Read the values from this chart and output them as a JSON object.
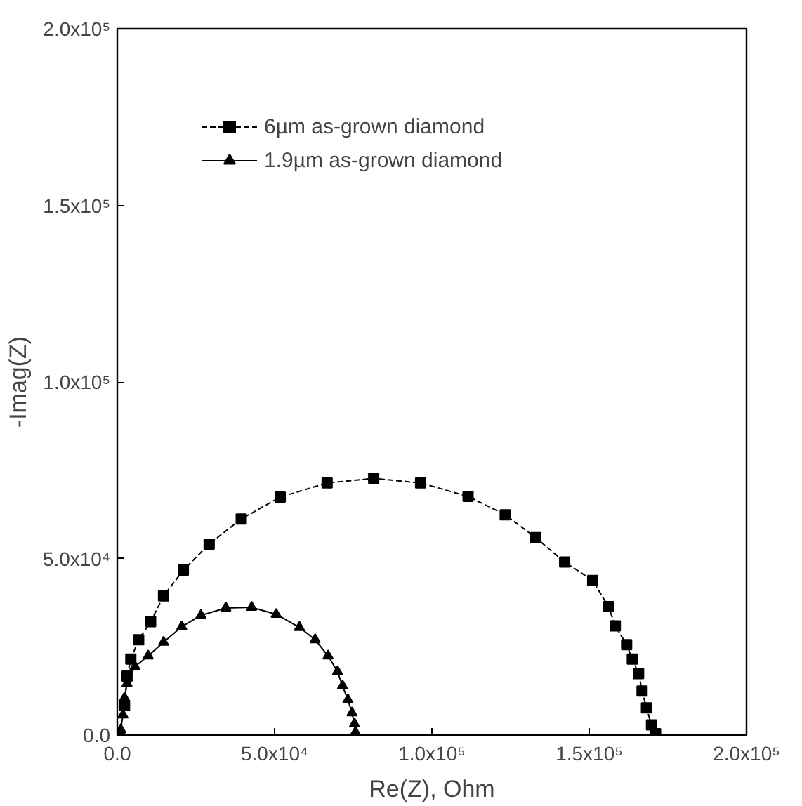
{
  "chart_data": {
    "type": "line",
    "xlabel": "Re(Z), Ohm",
    "ylabel": "-Imag(Z)",
    "xlim": [
      0,
      200000
    ],
    "ylim": [
      0,
      200000
    ],
    "xticks": [
      {
        "value": 0,
        "label": "0.0"
      },
      {
        "value": 50000,
        "label": "5.0x10⁴"
      },
      {
        "value": 100000,
        "label": "1.0x10⁵"
      },
      {
        "value": 150000,
        "label": "1.5x10⁵"
      },
      {
        "value": 200000,
        "label": "2.0x10⁵"
      }
    ],
    "yticks": [
      {
        "value": 0,
        "label": "0.0"
      },
      {
        "value": 50000,
        "label": "5.0x10⁴"
      },
      {
        "value": 100000,
        "label": "1.0x10⁵"
      },
      {
        "value": 150000,
        "label": "1.5x10⁵"
      },
      {
        "value": 200000,
        "label": "2.0x10⁵"
      }
    ],
    "grid": false,
    "legend": "top left",
    "series": [
      {
        "name": "6µm as-grown diamond",
        "color": "#000000",
        "marker": "square",
        "line_style": "dashed",
        "x": [
          600,
          2300,
          3100,
          4300,
          6800,
          10600,
          14700,
          21000,
          29200,
          39400,
          51800,
          66700,
          81500,
          96400,
          111500,
          123300,
          133000,
          142200,
          151100,
          156100,
          158300,
          161900,
          163700,
          165700,
          166800,
          168200,
          169800,
          171100
        ],
        "values": [
          0,
          8400,
          16700,
          21500,
          27000,
          32100,
          39400,
          46700,
          54100,
          61200,
          67400,
          71400,
          72700,
          71400,
          67600,
          62400,
          55900,
          49000,
          43800,
          36400,
          30900,
          25600,
          21500,
          17400,
          12500,
          7700,
          2900,
          400
        ]
      },
      {
        "name": "1.9µm as-grown diamond",
        "color": "#000000",
        "marker": "triangle",
        "line_style": "solid",
        "x": [
          1100,
          1800,
          2300,
          3100,
          5600,
          9800,
          14700,
          20500,
          26600,
          34500,
          42700,
          50500,
          57900,
          62900,
          67000,
          70000,
          71600,
          73300,
          74600,
          75400,
          75700
        ],
        "values": [
          1500,
          5700,
          10500,
          14600,
          19400,
          22400,
          26300,
          30700,
          33900,
          36000,
          36200,
          34200,
          30500,
          27000,
          22400,
          18000,
          13900,
          10000,
          6300,
          3200,
          800
        ]
      }
    ]
  }
}
